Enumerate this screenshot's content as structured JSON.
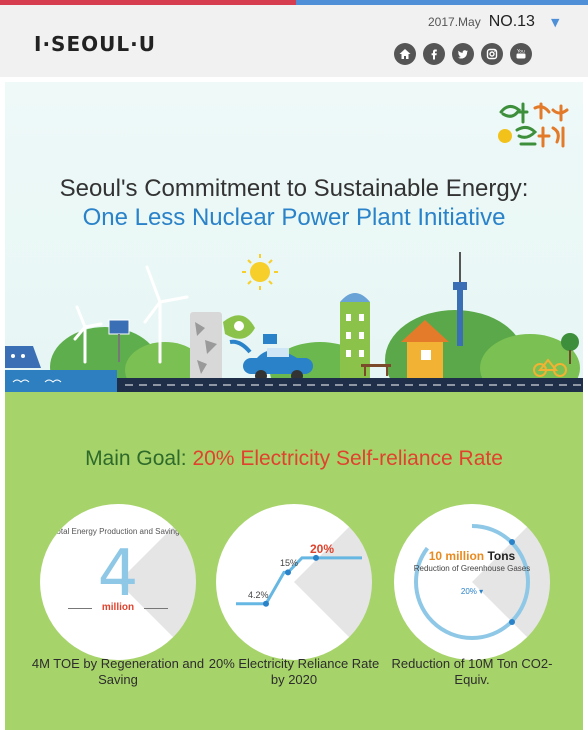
{
  "header": {
    "logo_text": "I·SEOUL·U",
    "date": "2017.May",
    "issue_no": "NO.13",
    "issue_dropdown_icon": "triangle-down-icon",
    "social_icons": [
      "home-icon",
      "facebook-icon",
      "twitter-icon",
      "instagram-icon",
      "youtube-icon"
    ],
    "accent_colors": {
      "red": "#d63e4f",
      "blue": "#4f8fd8"
    }
  },
  "hero": {
    "title_line1": "Seoul's Commitment to Sustainable Energy:",
    "title_line2": "One Less Nuclear Power Plant Initiative"
  },
  "goal": {
    "label": "Main Goal:",
    "value": "20% Electricity Self-reliance Rate"
  },
  "stats": [
    {
      "circle_top": "Total Energy Production and Savings",
      "circle_big": "4",
      "circle_unit": "million",
      "caption": "4M TOE by Regeneration and Saving"
    },
    {
      "points": [
        {
          "label": "4.2%",
          "value": 4.2
        },
        {
          "label": "15%",
          "value": 15
        },
        {
          "label": "20%",
          "value": 20
        }
      ],
      "caption": "20% Electricity Reliance Rate by 2020"
    },
    {
      "tons_a": "10 million",
      "tons_b": "Tons",
      "reduction_text": "Reduction of Greenhouse Gases",
      "pct": "20% ▾",
      "caption": "Reduction of 10M Ton CO2-Equiv."
    }
  ],
  "colors": {
    "green_bg": "#a7d36b",
    "highlight_red": "#e0432d",
    "blue_title": "#2a82c9"
  }
}
